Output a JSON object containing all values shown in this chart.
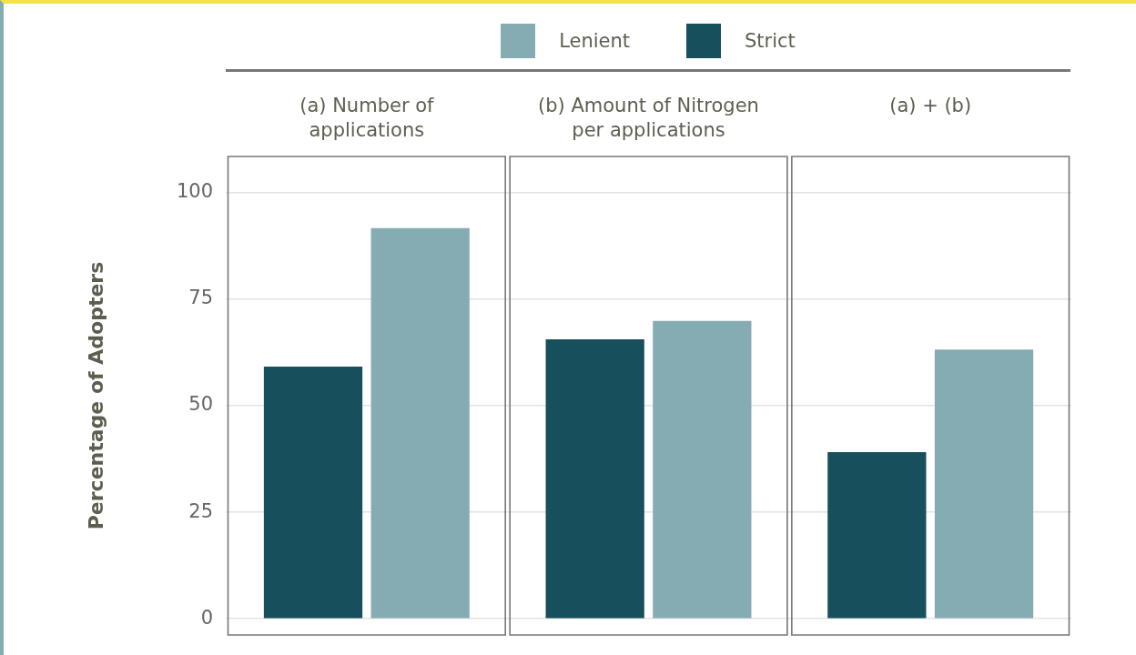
{
  "chart_data": {
    "type": "bar",
    "ylabel": "Percentage of Adopters",
    "categories": [
      "(a) Number of applications",
      "(b) Amount of Nitrogen per applications",
      "(a) + (b)"
    ],
    "series": [
      {
        "name": "Strict",
        "color": "#174f5c",
        "values": [
          59.2,
          65.6,
          39.1
        ]
      },
      {
        "name": "Lenient",
        "color": "#86acb3",
        "values": [
          91.7,
          69.9,
          63.2
        ]
      }
    ],
    "ylim": [
      -3.8,
      108.5
    ],
    "yticks": [
      0,
      25,
      50,
      75,
      100
    ],
    "grid": "y",
    "legend": "top"
  }
}
